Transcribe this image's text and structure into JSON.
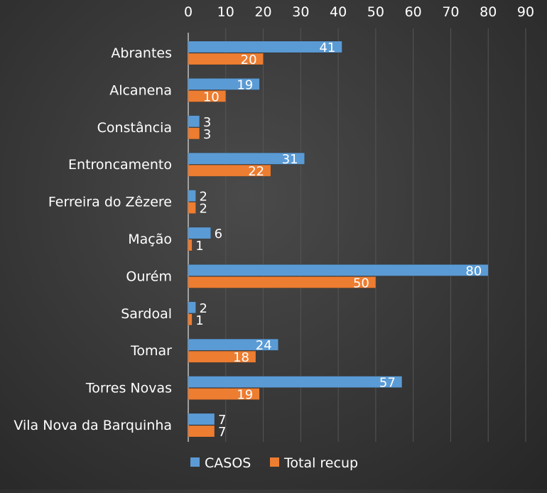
{
  "chart_data": {
    "type": "bar",
    "orientation": "horizontal",
    "categories": [
      "Abrantes",
      "Alcanena",
      "Constância",
      "Entroncamento",
      "Ferreira do Zêzere",
      "Mação",
      "Ourém",
      "Sardoal",
      "Tomar",
      "Torres Novas",
      "Vila Nova da Barquinha"
    ],
    "series": [
      {
        "name": "CASOS",
        "color": "#5b9bd5",
        "values": [
          41,
          19,
          3,
          31,
          2,
          6,
          80,
          2,
          24,
          57,
          7
        ]
      },
      {
        "name": "Total recup",
        "color": "#ed7d31",
        "values": [
          20,
          10,
          3,
          22,
          2,
          1,
          50,
          1,
          18,
          19,
          7
        ]
      }
    ],
    "xlim": [
      0,
      90
    ],
    "xticks": [
      0,
      10,
      20,
      30,
      40,
      50,
      60,
      70,
      80,
      90
    ],
    "xaxis_position": "top",
    "grid": true,
    "data_labels": true,
    "legend_position": "bottom"
  }
}
